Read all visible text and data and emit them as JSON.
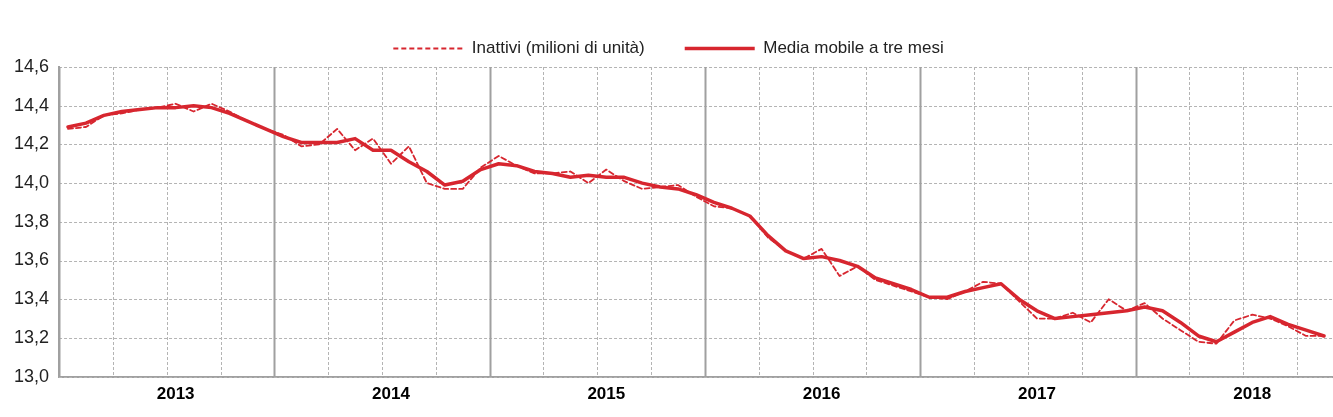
{
  "chart_data": {
    "type": "line",
    "categories": [
      null,
      null,
      null,
      null,
      null,
      null,
      "2013",
      null,
      null,
      null,
      null,
      null,
      null,
      null,
      null,
      null,
      null,
      null,
      "2014",
      null,
      null,
      null,
      null,
      null,
      null,
      null,
      null,
      null,
      null,
      null,
      "2015",
      null,
      null,
      null,
      null,
      null,
      null,
      null,
      null,
      null,
      null,
      null,
      "2016",
      null,
      null,
      null,
      null,
      null,
      null,
      null,
      null,
      null,
      null,
      null,
      "2017",
      null,
      null,
      null,
      null,
      null,
      null,
      null,
      null,
      null,
      null,
      null,
      "2018",
      null,
      null,
      null,
      null
    ],
    "series": [
      {
        "name": "Inattivi (milioni di unità)",
        "color": "#d7262f",
        "line_style": "dashed",
        "values": [
          14.28,
          14.29,
          14.35,
          14.36,
          14.38,
          14.39,
          14.41,
          14.37,
          14.41,
          14.37,
          14.32,
          14.28,
          14.25,
          14.19,
          14.2,
          14.28,
          14.17,
          14.23,
          14.1,
          14.19,
          14.0,
          13.97,
          13.97,
          14.08,
          14.14,
          14.09,
          14.05,
          14.05,
          14.06,
          14.0,
          14.07,
          14.01,
          13.97,
          13.98,
          13.99,
          13.93,
          13.88,
          13.87,
          13.83,
          13.72,
          13.65,
          13.61,
          13.66,
          13.52,
          13.57,
          13.5,
          13.47,
          13.44,
          13.41,
          13.4,
          13.44,
          13.49,
          13.48,
          13.39,
          13.3,
          13.3,
          13.33,
          13.28,
          13.4,
          13.34,
          13.38,
          13.3,
          13.24,
          13.18,
          13.17,
          13.29,
          13.32,
          13.3,
          13.26,
          13.21,
          13.21
        ]
      },
      {
        "name": "Media mobile a tre mesi",
        "color": "#d7262f",
        "line_style": "solid",
        "values": [
          14.29,
          14.31,
          14.35,
          14.37,
          14.38,
          14.39,
          14.39,
          14.4,
          14.39,
          14.36,
          14.32,
          14.28,
          14.24,
          14.21,
          14.21,
          14.21,
          14.23,
          14.17,
          14.17,
          14.11,
          14.06,
          13.99,
          14.01,
          14.07,
          14.1,
          14.09,
          14.06,
          14.05,
          14.03,
          14.04,
          14.03,
          14.03,
          14.0,
          13.98,
          13.97,
          13.94,
          13.9,
          13.87,
          13.83,
          13.73,
          13.65,
          13.61,
          13.62,
          13.6,
          13.57,
          13.51,
          13.48,
          13.45,
          13.41,
          13.41,
          13.44,
          13.46,
          13.48,
          13.4,
          13.34,
          13.3,
          13.31,
          13.32,
          13.33,
          13.34,
          13.36,
          13.34,
          13.28,
          13.21,
          13.18,
          13.23,
          13.28,
          13.31,
          13.27,
          13.24,
          13.21
        ]
      }
    ],
    "ylim": [
      13.0,
      14.6
    ],
    "yticks": [
      {
        "value": 13.0,
        "label": "13,0"
      },
      {
        "value": 13.2,
        "label": "13,2"
      },
      {
        "value": 13.4,
        "label": "13,4"
      },
      {
        "value": 13.6,
        "label": "13,6"
      },
      {
        "value": 13.8,
        "label": "13,8"
      },
      {
        "value": 14.0,
        "label": "14,0"
      },
      {
        "value": 14.2,
        "label": "14,2"
      },
      {
        "value": 14.4,
        "label": "14,4"
      },
      {
        "value": 14.6,
        "label": "14,6"
      }
    ],
    "grid": true,
    "legend": "top",
    "marker": "none"
  }
}
